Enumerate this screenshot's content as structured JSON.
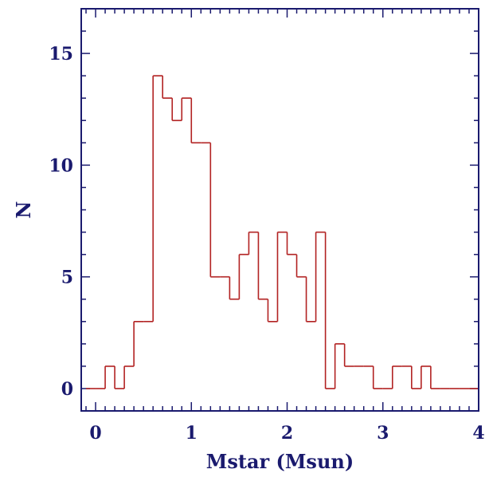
{
  "chart_data": {
    "type": "histogram",
    "title": "",
    "xlabel": "Mstar (Msun)",
    "ylabel": "N",
    "xlim": [
      -0.15,
      4.0
    ],
    "ylim": [
      -1,
      17
    ],
    "x_major_ticks": [
      0,
      1,
      2,
      3,
      4
    ],
    "x_minor_step": 0.1,
    "y_major_ticks": [
      0,
      5,
      10,
      15
    ],
    "y_minor_step": 1,
    "x_tick_labels": [
      "0",
      "1",
      "2",
      "3",
      "4"
    ],
    "y_tick_labels": [
      "0",
      "5",
      "10",
      "15"
    ],
    "bin_width": 0.1,
    "bin_edges": [
      -0.1,
      0.0,
      0.1,
      0.2,
      0.3,
      0.4,
      0.5,
      0.6,
      0.7,
      0.8,
      0.9,
      1.0,
      1.1,
      1.2,
      1.3,
      1.4,
      1.5,
      1.6,
      1.7,
      1.8,
      1.9,
      2.0,
      2.1,
      2.2,
      2.3,
      2.4,
      2.5,
      2.6,
      2.7,
      2.8,
      2.9,
      3.0,
      3.1,
      3.2,
      3.3,
      3.4,
      3.5,
      3.6,
      3.7,
      3.8,
      3.9,
      4.0
    ],
    "counts": [
      0,
      0,
      1,
      0,
      1,
      3,
      3,
      14,
      13,
      12,
      13,
      11,
      11,
      5,
      5,
      4,
      6,
      7,
      4,
      3,
      7,
      6,
      5,
      3,
      7,
      0,
      2,
      1,
      1,
      1,
      0,
      0,
      1,
      1,
      0,
      1,
      0,
      0,
      0,
      0,
      0
    ],
    "line_color": "#b22222",
    "axis_color": "#1a1a6e",
    "grid": false,
    "legend": "none"
  }
}
